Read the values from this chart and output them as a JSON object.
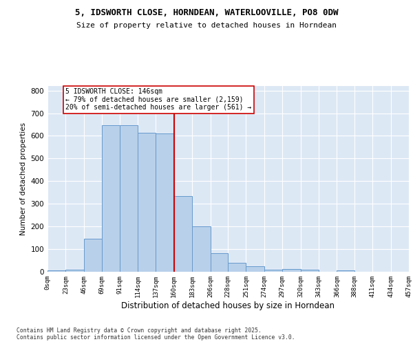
{
  "title_line1": "5, IDSWORTH CLOSE, HORNDEAN, WATERLOOVILLE, PO8 0DW",
  "title_line2": "Size of property relative to detached houses in Horndean",
  "xlabel": "Distribution of detached houses by size in Horndean",
  "ylabel": "Number of detached properties",
  "bin_labels": [
    "0sqm",
    "23sqm",
    "46sqm",
    "69sqm",
    "91sqm",
    "114sqm",
    "137sqm",
    "160sqm",
    "183sqm",
    "206sqm",
    "228sqm",
    "251sqm",
    "274sqm",
    "297sqm",
    "320sqm",
    "343sqm",
    "366sqm",
    "388sqm",
    "411sqm",
    "434sqm",
    "457sqm"
  ],
  "bar_heights": [
    5,
    10,
    145,
    648,
    648,
    612,
    610,
    335,
    200,
    83,
    40,
    25,
    10,
    11,
    10,
    0,
    5,
    0,
    0,
    0
  ],
  "bar_color": "#b8d0ea",
  "bar_edge_color": "#6699cc",
  "background_color": "#dde8f5",
  "vline_x": 160,
  "vline_color": "#cc0000",
  "annotation_text": "5 IDSWORTH CLOSE: 146sqm\n← 79% of detached houses are smaller (2,159)\n20% of semi-detached houses are larger (561) →",
  "annotation_box_color": "#ffffff",
  "annotation_box_edge": "#cc0000",
  "footer_text": "Contains HM Land Registry data © Crown copyright and database right 2025.\nContains public sector information licensed under the Open Government Licence v3.0.",
  "ylim": [
    0,
    820
  ],
  "yticks": [
    0,
    100,
    200,
    300,
    400,
    500,
    600,
    700,
    800
  ],
  "bin_edges": [
    0,
    23,
    46,
    69,
    91,
    114,
    137,
    160,
    183,
    206,
    228,
    251,
    274,
    297,
    320,
    343,
    366,
    388,
    411,
    434,
    457
  ]
}
